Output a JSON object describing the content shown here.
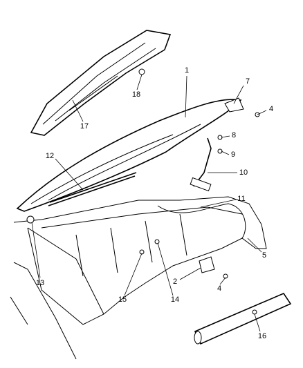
{
  "callouts": [
    "1",
    "2",
    "4",
    "4",
    "5",
    "7",
    "8",
    "9",
    "10",
    "11",
    "12",
    "13",
    "14",
    "15",
    "16",
    "17",
    "18"
  ]
}
